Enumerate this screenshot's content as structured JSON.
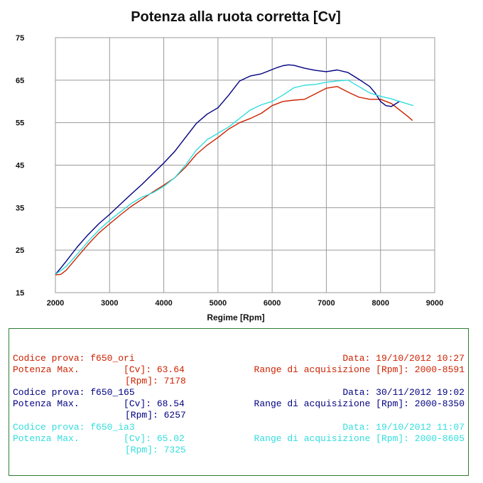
{
  "chart_data": {
    "type": "line",
    "title": "Potenza alla ruota corretta [Cv]",
    "xlabel": "Regime [Rpm]",
    "ylabel": "",
    "xlim": [
      2000,
      9000
    ],
    "ylim": [
      15,
      75
    ],
    "xticks": [
      2000,
      3000,
      4000,
      5000,
      6000,
      7000,
      8000,
      9000
    ],
    "yticks": [
      15,
      25,
      35,
      45,
      55,
      65,
      75
    ],
    "grid": true,
    "series": [
      {
        "color": "#cc2200",
        "x": [
          2000,
          2100,
          2200,
          2400,
          2600,
          2800,
          3000,
          3200,
          3400,
          3600,
          3800,
          4000,
          4200,
          4400,
          4600,
          4800,
          5000,
          5200,
          5400,
          5600,
          5800,
          6000,
          6200,
          6400,
          6600,
          6800,
          7000,
          7200,
          7400,
          7600,
          7800,
          8000,
          8200,
          8300,
          8400,
          8500,
          8591
        ],
        "y": [
          19.2,
          19.3,
          20.3,
          23.3,
          26.3,
          29.0,
          31.2,
          33.3,
          35.3,
          37.0,
          38.7,
          40.3,
          42.0,
          44.5,
          47.5,
          49.7,
          51.5,
          53.5,
          55.0,
          56.0,
          57.2,
          59.0,
          60.0,
          60.3,
          60.5,
          61.8,
          63.1,
          63.5,
          62.2,
          61.0,
          60.5,
          60.5,
          59.5,
          58.5,
          57.5,
          56.5,
          55.5
        ]
      },
      {
        "color": "#000080",
        "x": [
          2000,
          2100,
          2200,
          2400,
          2600,
          2800,
          3000,
          3200,
          3400,
          3600,
          3800,
          4000,
          4200,
          4400,
          4600,
          4800,
          5000,
          5200,
          5400,
          5600,
          5800,
          6000,
          6100,
          6200,
          6300,
          6400,
          6600,
          6800,
          7000,
          7200,
          7400,
          7600,
          7800,
          7900,
          8000,
          8100,
          8200,
          8350
        ],
        "y": [
          19.3,
          20.8,
          22.4,
          25.7,
          28.6,
          31.2,
          33.4,
          35.8,
          38.2,
          40.5,
          43.0,
          45.5,
          48.2,
          51.5,
          54.8,
          57.0,
          58.5,
          61.5,
          64.8,
          66.0,
          66.5,
          67.5,
          68.0,
          68.4,
          68.6,
          68.5,
          67.8,
          67.3,
          67.0,
          67.4,
          66.8,
          65.2,
          63.5,
          62.0,
          60.0,
          59.0,
          58.8,
          60.0
        ]
      },
      {
        "color": "#33dddd",
        "x": [
          2000,
          2100,
          2200,
          2400,
          2600,
          2800,
          3000,
          3200,
          3400,
          3600,
          3800,
          4000,
          4200,
          4400,
          4600,
          4800,
          5000,
          5200,
          5400,
          5600,
          5800,
          6000,
          6200,
          6400,
          6600,
          6800,
          7000,
          7200,
          7400,
          7600,
          7800,
          8000,
          8200,
          8400,
          8605
        ],
        "y": [
          19.3,
          20.2,
          21.2,
          24.0,
          27.0,
          29.7,
          32.0,
          34.0,
          36.0,
          37.5,
          38.5,
          40.0,
          42.0,
          45.0,
          48.5,
          51.0,
          52.5,
          54.0,
          56.0,
          58.0,
          59.2,
          60.0,
          61.5,
          63.2,
          63.8,
          64.0,
          64.5,
          64.8,
          65.0,
          63.5,
          62.0,
          61.2,
          60.6,
          59.8,
          59.0
        ]
      }
    ]
  },
  "legend_panel": {
    "tests": [
      {
        "color": "#cc2200",
        "code_line": "Codice prova: f650_ori",
        "date_line": "Data: 19/10/2012 10:27",
        "power_line": "Potenza Max.        [Cv]: 63.64",
        "range_line": "Range di acquisizione [Rpm]: 2000-8591",
        "rpm_line": "[Rpm]: 7178"
      },
      {
        "color": "#000080",
        "code_line": "Codice prova: f650_165",
        "date_line": "Data: 30/11/2012 19:02",
        "power_line": "Potenza Max.        [Cv]: 68.54",
        "range_line": "Range di acquisizione [Rpm]: 2000-8350",
        "rpm_line": "[Rpm]: 6257"
      },
      {
        "color": "#33dddd",
        "code_line": "Codice prova: f650_ia3",
        "date_line": "Data: 19/10/2012 11:07",
        "power_line": "Potenza Max.        [Cv]: 65.02",
        "range_line": "Range di acquisizione [Rpm]: 2000-8605",
        "rpm_line": "[Rpm]: 7325"
      }
    ]
  }
}
